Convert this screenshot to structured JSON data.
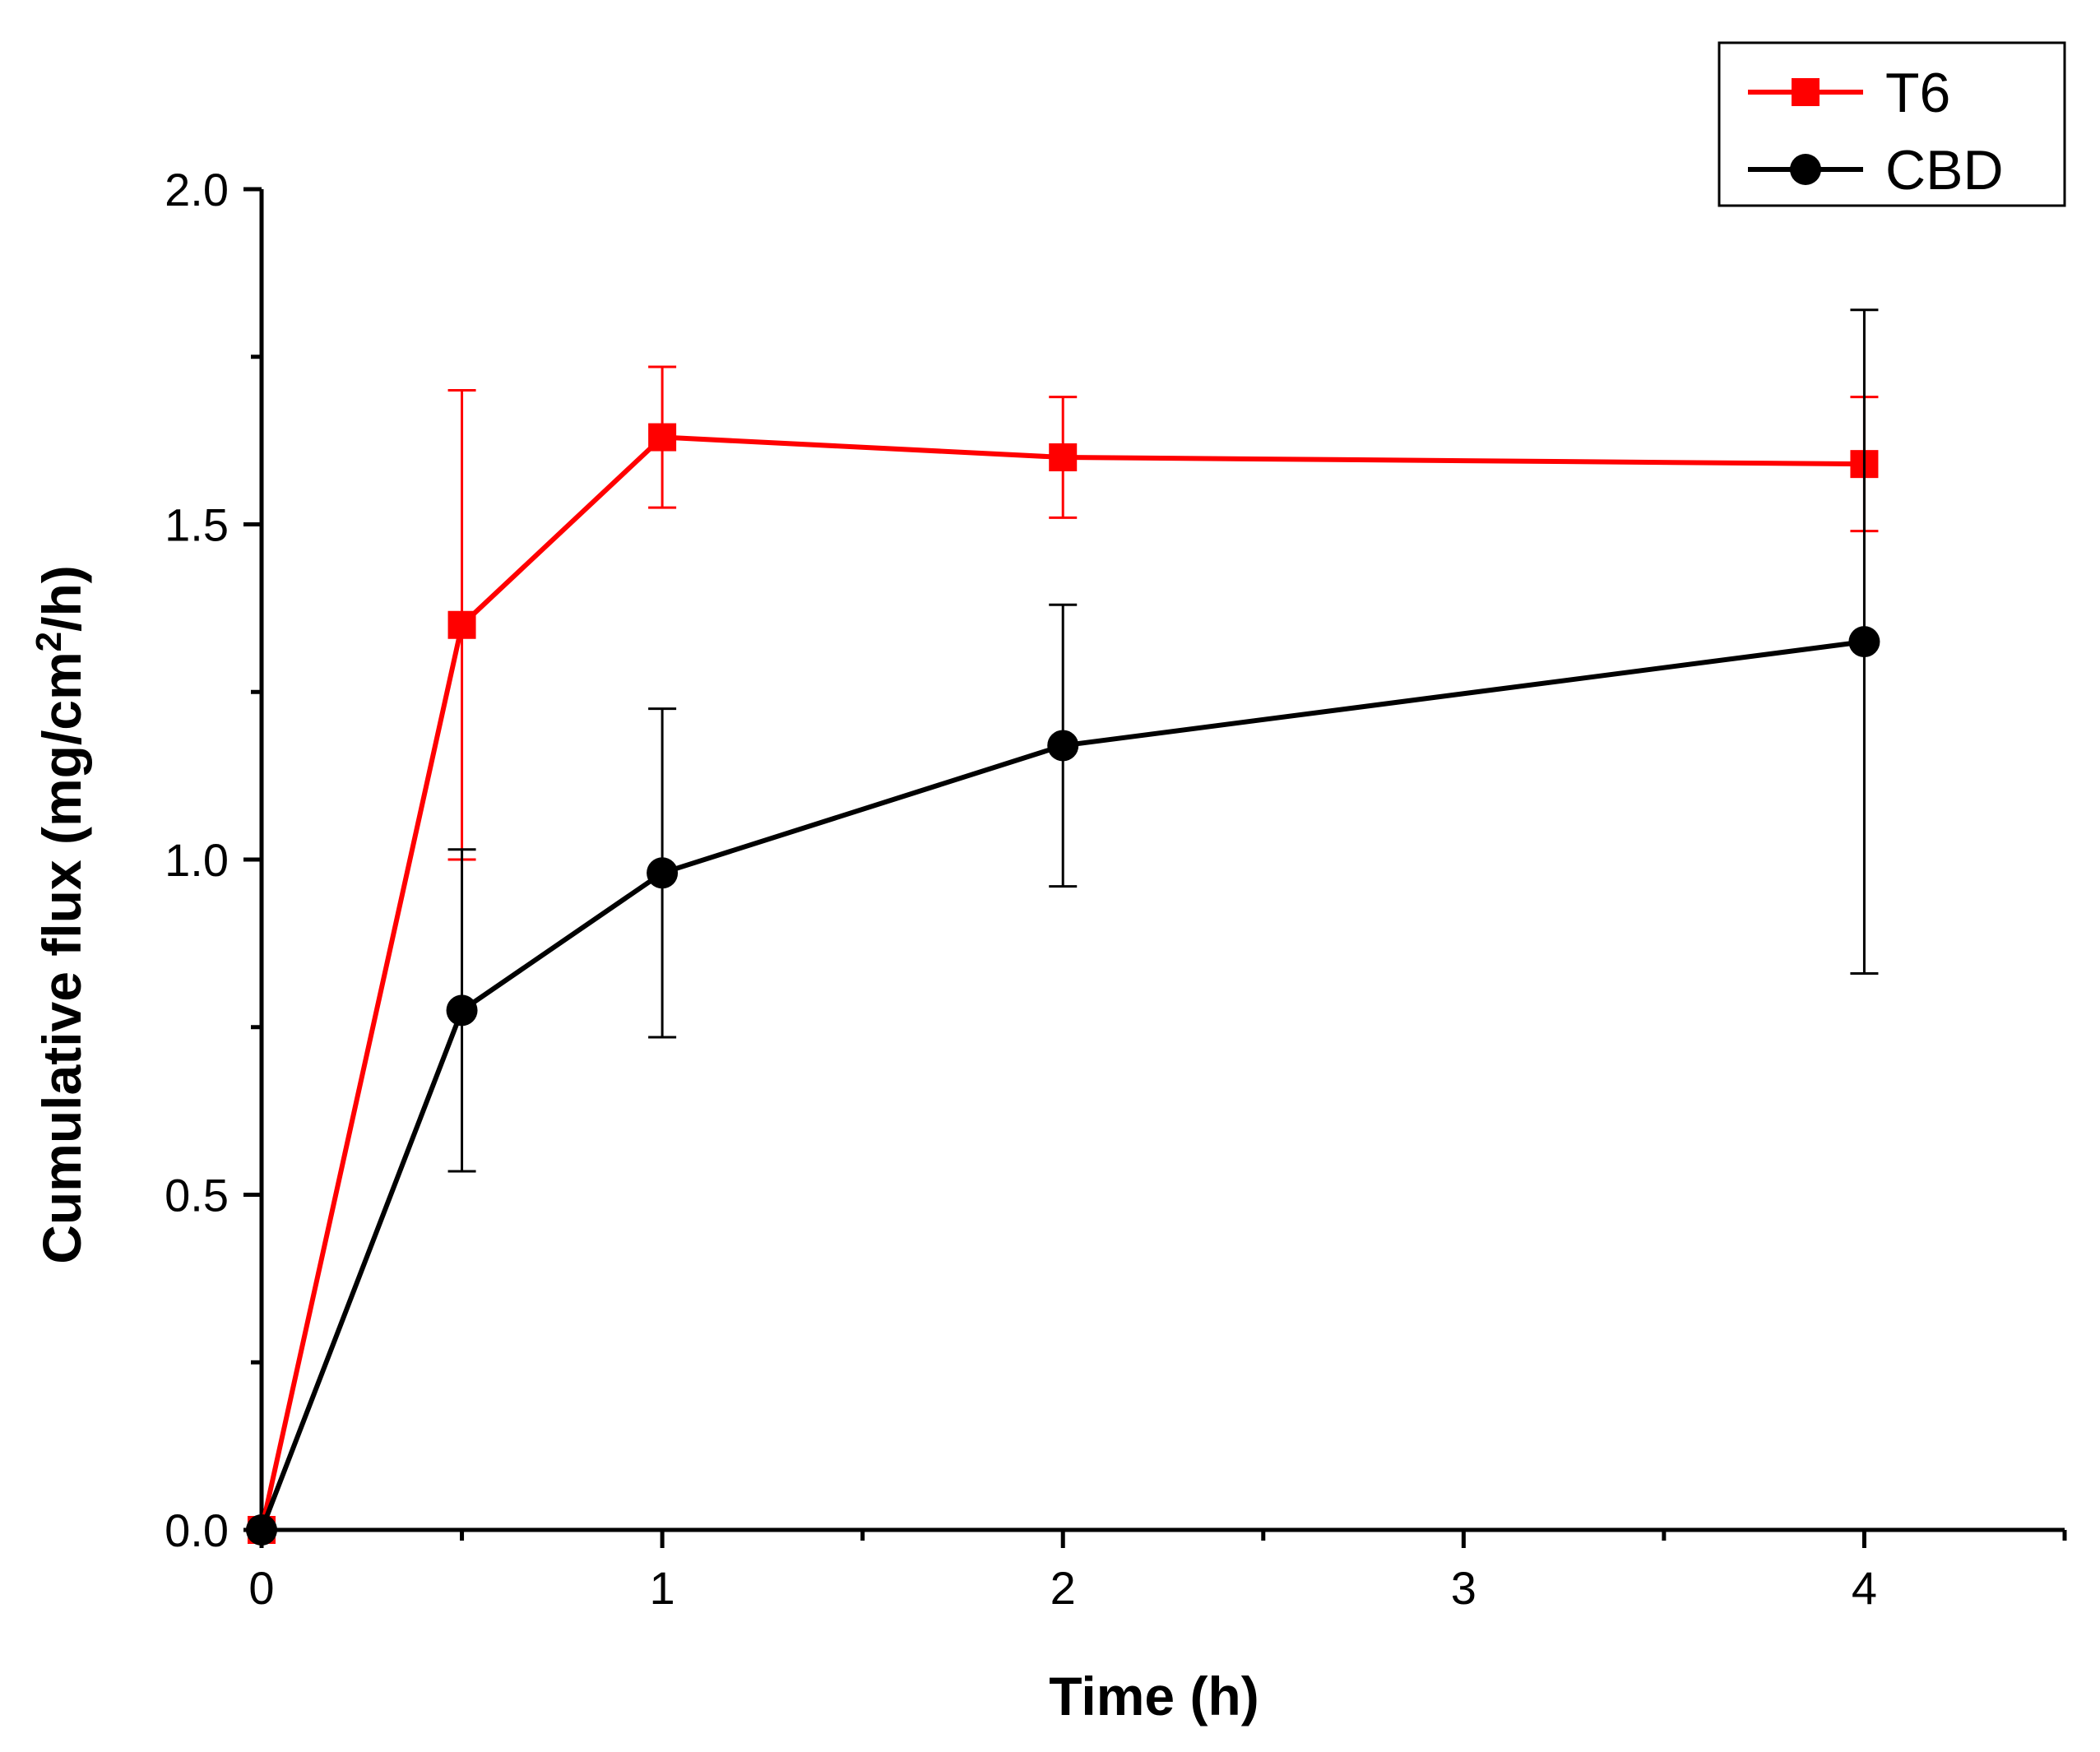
{
  "chart_data": {
    "type": "line",
    "title": "",
    "xlabel": "Time (h)",
    "ylabel_main": "Cumulative flux (mg/cm",
    "ylabel_sup": "2",
    "ylabel_tail": "/h)",
    "xlim": [
      0,
      4.5
    ],
    "ylim": [
      0,
      2.0
    ],
    "x_ticks": [
      0,
      1,
      2,
      3,
      4
    ],
    "x_tick_labels": [
      "0",
      "1",
      "2",
      "3",
      "4"
    ],
    "x_minor_ticks": [
      0.5,
      1.5,
      2.5,
      3.5,
      4.5
    ],
    "y_ticks": [
      0,
      0.5,
      1.0,
      1.5,
      2.0
    ],
    "y_tick_labels": [
      "0.0",
      "0.5",
      "1.0",
      "1.5",
      "2.0"
    ],
    "y_minor_ticks": [
      0.25,
      0.75,
      1.25,
      1.75
    ],
    "grid": false,
    "legend_position": "top-right",
    "series": [
      {
        "name": "T6",
        "color": "#ff0000",
        "marker": "square",
        "x": [
          0,
          0.5,
          1,
          2,
          4
        ],
        "y": [
          0,
          1.35,
          1.63,
          1.6,
          1.59
        ],
        "err": [
          0,
          0.35,
          0.105,
          0.09,
          0.1
        ]
      },
      {
        "name": "CBD",
        "color": "#000000",
        "marker": "circle",
        "x": [
          0,
          0.5,
          1,
          2,
          4
        ],
        "y": [
          0,
          0.775,
          0.98,
          1.17,
          1.325
        ],
        "err": [
          0,
          0.24,
          0.245,
          0.21,
          0.495
        ]
      }
    ]
  }
}
